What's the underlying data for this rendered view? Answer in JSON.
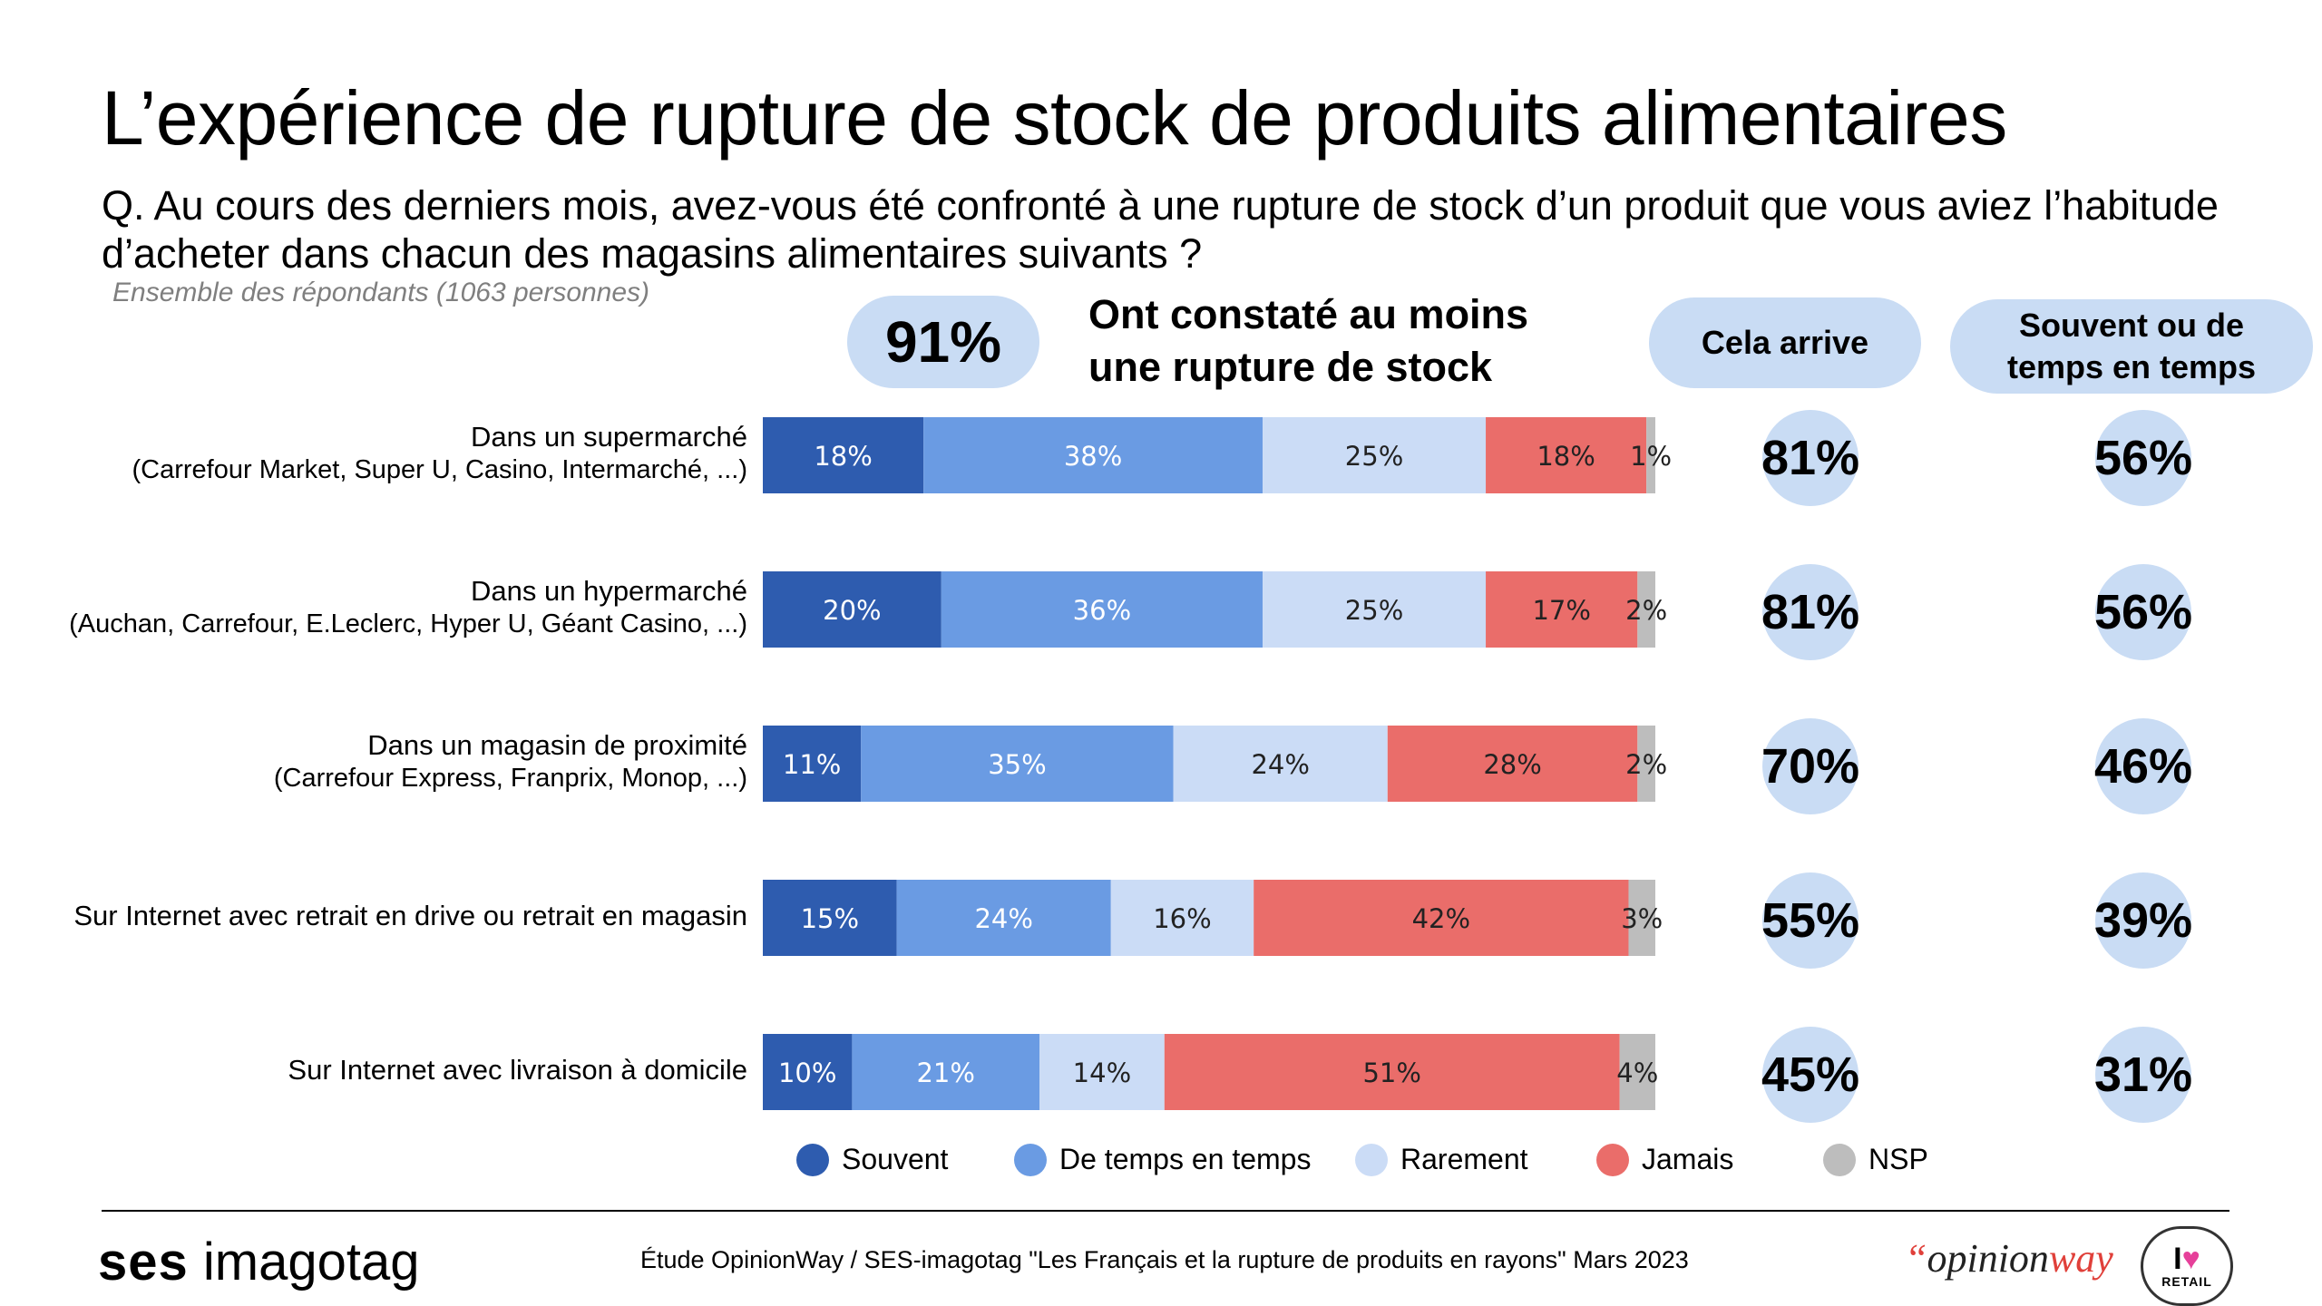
{
  "title": "L’expérience de rupture de stock de produits alimentaires",
  "question": "Q. Au cours des derniers mois, avez-vous été confronté à une rupture de stock d’un produit que vous aviez l’habitude d’acheter dans chacun des magasins alimentaires suivants ?",
  "base": "Ensemble des répondants (1063 personnes)",
  "total": {
    "value": "91%",
    "label_line1": "Ont constaté au moins",
    "label_line2": "une rupture de stock"
  },
  "headers": {
    "col1": "Cela arrive",
    "col2_line1": "Souvent ou de",
    "col2_line2": "temps en temps"
  },
  "rows": [
    {
      "label": "Dans un supermarché",
      "sublabel": "(Carrefour Market, Super U, Casino, Intermarché, ...)",
      "cela_arrive": "81%",
      "souvent_ou_tet": "56%"
    },
    {
      "label": "Dans un hypermarché",
      "sublabel": "(Auchan, Carrefour, E.Leclerc, Hyper U, Géant Casino, ...)",
      "cela_arrive": "81%",
      "souvent_ou_tet": "56%"
    },
    {
      "label": "Dans un magasin de proximité",
      "sublabel": "(Carrefour Express, Franprix, Monop, ...)",
      "cela_arrive": "70%",
      "souvent_ou_tet": "46%"
    },
    {
      "label": "Sur Internet avec retrait en drive ou retrait en magasin",
      "sublabel": "",
      "cela_arrive": "55%",
      "souvent_ou_tet": "39%"
    },
    {
      "label": "Sur Internet avec livraison à domicile",
      "sublabel": "",
      "cela_arrive": "45%",
      "souvent_ou_tet": "31%"
    }
  ],
  "legend": [
    "Souvent",
    "De temps en temps",
    "Rarement",
    "Jamais",
    "NSP"
  ],
  "colors": {
    "souvent": "#2e5caf",
    "de_temps_en_temps": "#6a9be3",
    "rarement": "#cbdcf6",
    "jamais": "#ea6d6a",
    "nsp": "#bdbdbd",
    "pill": "#c9dcf4"
  },
  "chart_data": {
    "type": "bar",
    "orientation": "horizontal",
    "stacked": true,
    "normalized": true,
    "categories": [
      "Dans un supermarché",
      "Dans un hypermarché",
      "Dans un magasin de proximité",
      "Sur Internet avec retrait en drive ou retrait en magasin",
      "Sur Internet avec livraison à domicile"
    ],
    "series": [
      {
        "name": "Souvent",
        "values": [
          18,
          20,
          11,
          15,
          10
        ]
      },
      {
        "name": "De temps en temps",
        "values": [
          38,
          36,
          35,
          24,
          21
        ]
      },
      {
        "name": "Rarement",
        "values": [
          25,
          25,
          24,
          16,
          14
        ]
      },
      {
        "name": "Jamais",
        "values": [
          18,
          17,
          28,
          42,
          51
        ]
      },
      {
        "name": "NSP",
        "values": [
          1,
          2,
          2,
          3,
          4
        ]
      }
    ],
    "value_suffix": "%",
    "legend_position": "bottom",
    "grid": false
  },
  "footer": {
    "source": "Étude OpinionWay / SES-imagotag \"Les Français et la rupture de produits en rayons\" Mars 2023",
    "logo_left_bold": "ses",
    "logo_left_rest": "imagotag",
    "logo_right_quote": "“",
    "logo_right_opinion": "opinion",
    "logo_right_way": "way",
    "badge_top_i": "I",
    "badge_heart": "♥",
    "badge_bottom": "RETAIL"
  }
}
